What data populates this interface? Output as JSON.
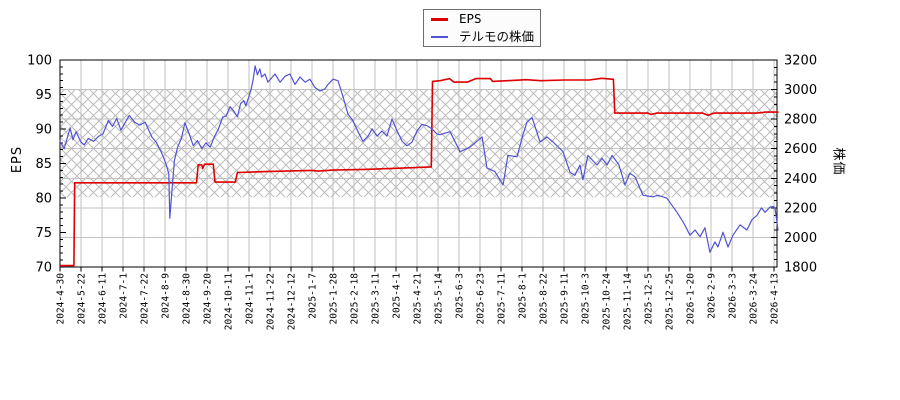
{
  "chart_data": {
    "type": "line",
    "title": "",
    "legend_position": "top-center",
    "grid": true,
    "x_axis": {
      "unit": "tick_index (one tick = 3 weeks of trading days)",
      "tick_labels": [
        "2024-4-30",
        "2024-5-22",
        "2024-6-11",
        "2024-7-1",
        "2024-7-22",
        "2024-8-9",
        "2024-8-30",
        "2024-9-20",
        "2024-10-11",
        "2024-11-1",
        "2024-11-22",
        "2024-12-12",
        "2025-1-7",
        "2025-1-28",
        "2025-2-18",
        "2025-3-11",
        "2025-4-1",
        "2025-4-21",
        "2025-5-14",
        "2025-6-3",
        "2025-6-23",
        "2025-7-11",
        "2025-8-1",
        "2025-8-22",
        "2025-9-11",
        "2025-10-3",
        "2025-10-24",
        "2025-11-14",
        "2025-12-5",
        "2025-12-25",
        "2026-1-20",
        "2026-2-9",
        "2026-3-3",
        "2026-3-24",
        "2026-4-13"
      ]
    },
    "y_left": {
      "label": "EPS",
      "range": [
        70,
        100
      ],
      "ticks": [
        70,
        75,
        80,
        85,
        90,
        95,
        100
      ],
      "minor_step": 1
    },
    "y_right": {
      "label": "株価",
      "range": [
        1800,
        3200
      ],
      "ticks": [
        1800,
        2000,
        2200,
        2400,
        2600,
        2800,
        3000,
        3200
      ],
      "minor_step": 50
    },
    "hatch_band": {
      "axis": "right",
      "min": 2272,
      "max": 3000
    },
    "colors": {
      "eps": "#dd0000",
      "price": "#5252d4",
      "grid": "#c2c2c2",
      "hatch": "#bcbcbc",
      "frame": "#000000"
    },
    "series": [
      {
        "name": "EPS",
        "axis": "left",
        "color": "#dd0000",
        "width": 1.6,
        "points": [
          [
            0,
            70.2
          ],
          [
            0.66,
            70.2
          ],
          [
            0.7,
            82.2
          ],
          [
            6.5,
            82.2
          ],
          [
            6.58,
            84.8
          ],
          [
            6.75,
            84.8
          ],
          [
            6.8,
            84.3
          ],
          [
            6.88,
            84.9
          ],
          [
            7.3,
            84.9
          ],
          [
            7.38,
            82.3
          ],
          [
            8.35,
            82.3
          ],
          [
            8.45,
            83.7
          ],
          [
            10,
            83.85
          ],
          [
            12,
            84.0
          ],
          [
            12.3,
            83.9
          ],
          [
            13,
            84.05
          ],
          [
            14.5,
            84.15
          ],
          [
            16,
            84.3
          ],
          [
            17.2,
            84.45
          ],
          [
            17.68,
            84.5
          ],
          [
            17.74,
            96.9
          ],
          [
            18.1,
            97.0
          ],
          [
            18.55,
            97.3
          ],
          [
            18.75,
            96.8
          ],
          [
            19.4,
            96.8
          ],
          [
            19.8,
            97.3
          ],
          [
            20.5,
            97.3
          ],
          [
            20.6,
            96.9
          ],
          [
            21.3,
            97.0
          ],
          [
            22.2,
            97.15
          ],
          [
            22.9,
            97.0
          ],
          [
            24.0,
            97.1
          ],
          [
            25.2,
            97.1
          ],
          [
            25.8,
            97.35
          ],
          [
            26.35,
            97.2
          ],
          [
            26.42,
            92.3
          ],
          [
            28.0,
            92.3
          ],
          [
            28.15,
            92.1
          ],
          [
            28.4,
            92.3
          ],
          [
            30.6,
            92.3
          ],
          [
            30.85,
            92.0
          ],
          [
            31.15,
            92.3
          ],
          [
            33.2,
            92.3
          ],
          [
            33.6,
            92.45
          ],
          [
            34.19,
            92.45
          ]
        ]
      },
      {
        "name": "テルモの株価",
        "axis": "right",
        "color": "#5252d4",
        "width": 1.2,
        "points": [
          [
            0,
            2650
          ],
          [
            0.2,
            2600
          ],
          [
            0.48,
            2740
          ],
          [
            0.62,
            2660
          ],
          [
            0.76,
            2715
          ],
          [
            1.0,
            2645
          ],
          [
            1.15,
            2625
          ],
          [
            1.35,
            2670
          ],
          [
            1.6,
            2650
          ],
          [
            1.85,
            2685
          ],
          [
            2.05,
            2700
          ],
          [
            2.3,
            2790
          ],
          [
            2.5,
            2750
          ],
          [
            2.7,
            2805
          ],
          [
            2.9,
            2725
          ],
          [
            3.1,
            2775
          ],
          [
            3.3,
            2825
          ],
          [
            3.55,
            2780
          ],
          [
            3.8,
            2760
          ],
          [
            4.05,
            2780
          ],
          [
            4.37,
            2680
          ],
          [
            4.6,
            2640
          ],
          [
            4.85,
            2570
          ],
          [
            5.05,
            2495
          ],
          [
            5.18,
            2430
          ],
          [
            5.23,
            2130
          ],
          [
            5.33,
            2310
          ],
          [
            5.45,
            2520
          ],
          [
            5.6,
            2610
          ],
          [
            5.78,
            2670
          ],
          [
            5.95,
            2775
          ],
          [
            6.15,
            2700
          ],
          [
            6.35,
            2620
          ],
          [
            6.55,
            2655
          ],
          [
            6.75,
            2600
          ],
          [
            6.95,
            2640
          ],
          [
            7.15,
            2610
          ],
          [
            7.35,
            2680
          ],
          [
            7.55,
            2735
          ],
          [
            7.75,
            2815
          ],
          [
            7.9,
            2820
          ],
          [
            8.1,
            2885
          ],
          [
            8.3,
            2850
          ],
          [
            8.45,
            2815
          ],
          [
            8.6,
            2905
          ],
          [
            8.75,
            2925
          ],
          [
            8.85,
            2890
          ],
          [
            9.0,
            2955
          ],
          [
            9.1,
            3000
          ],
          [
            9.2,
            3070
          ],
          [
            9.29,
            3160
          ],
          [
            9.4,
            3100
          ],
          [
            9.52,
            3140
          ],
          [
            9.6,
            3085
          ],
          [
            9.76,
            3105
          ],
          [
            9.9,
            3050
          ],
          [
            10.24,
            3105
          ],
          [
            10.48,
            3050
          ],
          [
            10.71,
            3090
          ],
          [
            10.95,
            3105
          ],
          [
            11.19,
            3035
          ],
          [
            11.43,
            3085
          ],
          [
            11.67,
            3050
          ],
          [
            11.9,
            3070
          ],
          [
            12.14,
            3015
          ],
          [
            12.38,
            2990
          ],
          [
            12.62,
            3005
          ],
          [
            12.76,
            3035
          ],
          [
            13.0,
            3070
          ],
          [
            13.24,
            3060
          ],
          [
            13.48,
            2950
          ],
          [
            13.71,
            2835
          ],
          [
            13.95,
            2790
          ],
          [
            14.19,
            2715
          ],
          [
            14.43,
            2650
          ],
          [
            14.67,
            2685
          ],
          [
            14.86,
            2735
          ],
          [
            15.1,
            2685
          ],
          [
            15.33,
            2720
          ],
          [
            15.57,
            2685
          ],
          [
            15.81,
            2800
          ],
          [
            16.05,
            2720
          ],
          [
            16.29,
            2650
          ],
          [
            16.52,
            2620
          ],
          [
            16.76,
            2645
          ],
          [
            17.0,
            2720
          ],
          [
            17.24,
            2765
          ],
          [
            17.48,
            2755
          ],
          [
            17.71,
            2735
          ],
          [
            17.95,
            2700
          ],
          [
            18.1,
            2695
          ],
          [
            18.57,
            2715
          ],
          [
            19.05,
            2580
          ],
          [
            19.52,
            2610
          ],
          [
            20.1,
            2680
          ],
          [
            20.33,
            2470
          ],
          [
            20.71,
            2445
          ],
          [
            21.1,
            2355
          ],
          [
            21.33,
            2555
          ],
          [
            21.76,
            2545
          ],
          [
            22.05,
            2695
          ],
          [
            22.24,
            2780
          ],
          [
            22.48,
            2810
          ],
          [
            22.86,
            2645
          ],
          [
            23.19,
            2680
          ],
          [
            23.48,
            2645
          ],
          [
            23.95,
            2580
          ],
          [
            24.29,
            2440
          ],
          [
            24.52,
            2420
          ],
          [
            24.76,
            2490
          ],
          [
            24.9,
            2390
          ],
          [
            25.14,
            2555
          ],
          [
            25.57,
            2490
          ],
          [
            25.81,
            2535
          ],
          [
            26.05,
            2490
          ],
          [
            26.29,
            2555
          ],
          [
            26.62,
            2490
          ],
          [
            26.9,
            2355
          ],
          [
            27.14,
            2435
          ],
          [
            27.38,
            2410
          ],
          [
            27.76,
            2285
          ],
          [
            28.24,
            2275
          ],
          [
            28.48,
            2285
          ],
          [
            28.9,
            2265
          ],
          [
            29.38,
            2170
          ],
          [
            29.67,
            2105
          ],
          [
            30.0,
            2015
          ],
          [
            30.24,
            2050
          ],
          [
            30.48,
            2005
          ],
          [
            30.71,
            2065
          ],
          [
            30.95,
            1900
          ],
          [
            31.19,
            1970
          ],
          [
            31.33,
            1935
          ],
          [
            31.57,
            2035
          ],
          [
            31.81,
            1935
          ],
          [
            32.05,
            2015
          ],
          [
            32.38,
            2085
          ],
          [
            32.71,
            2050
          ],
          [
            32.95,
            2120
          ],
          [
            33.19,
            2150
          ],
          [
            33.4,
            2200
          ],
          [
            33.57,
            2170
          ],
          [
            33.81,
            2205
          ],
          [
            33.95,
            2210
          ],
          [
            34.05,
            2200
          ],
          [
            34.19,
            2050
          ]
        ]
      }
    ]
  }
}
